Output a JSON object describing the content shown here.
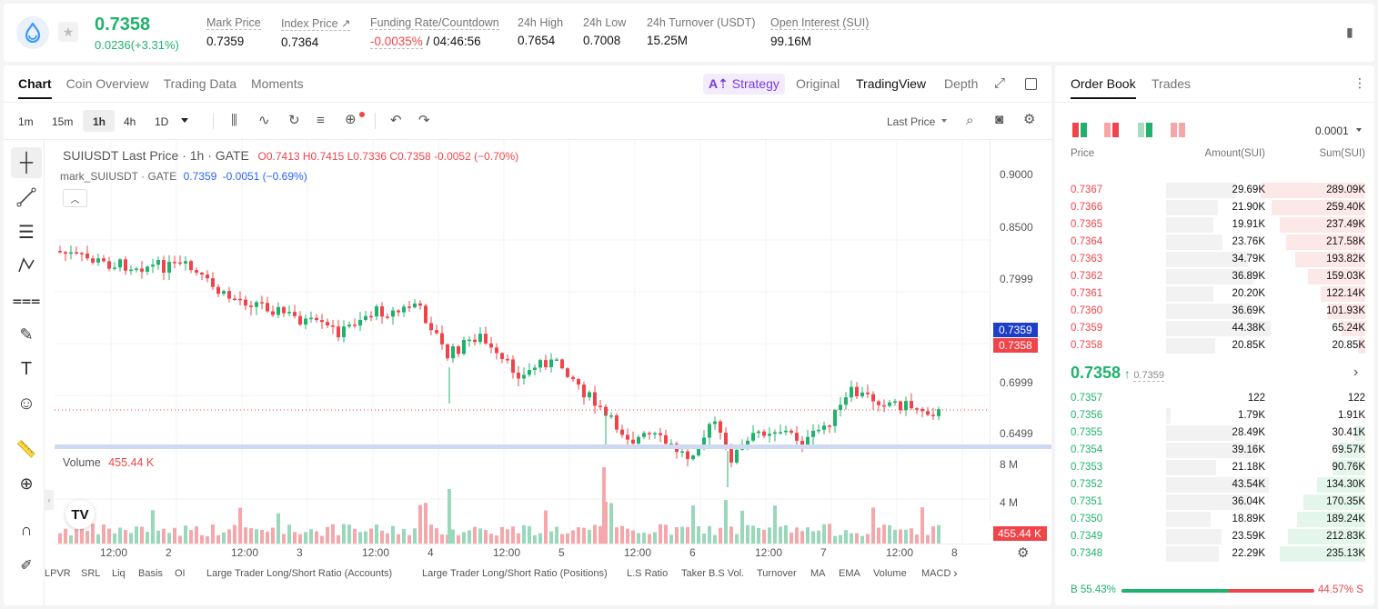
{
  "header": {
    "price": "0.7358",
    "change": "0.0236(+3.31%)",
    "stats": [
      {
        "label": "Mark Price",
        "value": "0.7359"
      },
      {
        "label": "Index Price ↗",
        "value": "0.7364"
      },
      {
        "label": "Funding Rate/Countdown",
        "rate": "-0.0035%",
        "countdown": "/ 04:46:56"
      },
      {
        "label": "24h High",
        "value": "0.7654"
      },
      {
        "label": "24h Low",
        "value": "0.7008"
      },
      {
        "label": "24h Turnover (USDT)",
        "value": "15.25M"
      },
      {
        "label": "Open Interest (SUI)",
        "value": "99.16M"
      }
    ]
  },
  "chart_tabs": [
    "Chart",
    "Coin Overview",
    "Trading Data",
    "Moments"
  ],
  "view_tabs": {
    "strategy": "Strategy",
    "original": "Original",
    "tradingview": "TradingView",
    "depth": "Depth"
  },
  "timeframes": [
    "1m",
    "15m",
    "1h",
    "4h",
    "1D"
  ],
  "price_type": "Last Price",
  "legend": {
    "title": "SUIUSDT Last Price · 1h · GATE",
    "o": "O0.7413",
    "h": "H0.7415",
    "l": "L0.7336",
    "c": "C0.7358",
    "chg": "-0.0052 (−0.70%)",
    "mark": "mark_SUIUSDT · GATE",
    "mark_val": "0.7359",
    "mark_chg": "-0.0051 (−0.69%)"
  },
  "price_axis": [
    "0.9000",
    "0.8500",
    "0.7999",
    "0.6999",
    "0.6499"
  ],
  "mark_tag": "0.7359",
  "last_tag": "0.7358",
  "volume": {
    "label": "Volume",
    "value": "455.44 K",
    "axis": [
      "8 M",
      "4 M"
    ],
    "tag": "455.44 K"
  },
  "time_axis": [
    "12:00",
    "2",
    "12:00",
    "3",
    "12:00",
    "4",
    "12:00",
    "5",
    "12:00",
    "6",
    "12:00",
    "7",
    "12:00",
    "8"
  ],
  "indicators": [
    "LPVR",
    "SRL",
    "Liq",
    "Basis",
    "OI",
    "Large Trader Long/Short Ratio (Accounts)",
    "Large Trader Long/Short Ratio (Positions)",
    "L.S Ratio",
    "Taker B.S Vol.",
    "Turnover",
    "MA",
    "EMA",
    "Volume",
    "MACD"
  ],
  "orderbook": {
    "tabs": [
      "Order Book",
      "Trades"
    ],
    "precision": "0.0001",
    "cols": [
      "Price",
      "Amount(SUI)",
      "Sum(SUI)"
    ],
    "asks": [
      {
        "p": "0.7367",
        "a": "29.69K",
        "s": "289.09K"
      },
      {
        "p": "0.7366",
        "a": "21.90K",
        "s": "259.40K"
      },
      {
        "p": "0.7365",
        "a": "19.91K",
        "s": "237.49K"
      },
      {
        "p": "0.7364",
        "a": "23.76K",
        "s": "217.58K"
      },
      {
        "p": "0.7363",
        "a": "34.79K",
        "s": "193.82K"
      },
      {
        "p": "0.7362",
        "a": "36.89K",
        "s": "159.03K"
      },
      {
        "p": "0.7361",
        "a": "20.20K",
        "s": "122.14K"
      },
      {
        "p": "0.7360",
        "a": "36.69K",
        "s": "101.93K"
      },
      {
        "p": "0.7359",
        "a": "44.38K",
        "s": "65.24K"
      },
      {
        "p": "0.7358",
        "a": "20.85K",
        "s": "20.85K"
      }
    ],
    "mid": "0.7358",
    "mid_mark": "0.7359",
    "bids": [
      {
        "p": "0.7357",
        "a": "122",
        "s": "122"
      },
      {
        "p": "0.7356",
        "a": "1.79K",
        "s": "1.91K"
      },
      {
        "p": "0.7355",
        "a": "28.49K",
        "s": "30.41K"
      },
      {
        "p": "0.7354",
        "a": "39.16K",
        "s": "69.57K"
      },
      {
        "p": "0.7353",
        "a": "21.18K",
        "s": "90.76K"
      },
      {
        "p": "0.7352",
        "a": "43.54K",
        "s": "134.30K"
      },
      {
        "p": "0.7351",
        "a": "36.04K",
        "s": "170.35K"
      },
      {
        "p": "0.7350",
        "a": "18.89K",
        "s": "189.24K"
      },
      {
        "p": "0.7349",
        "a": "23.59K",
        "s": "212.83K"
      },
      {
        "p": "0.7348",
        "a": "22.29K",
        "s": "235.13K"
      }
    ],
    "buy_label": "B 55.43%",
    "sell_label": "44.57% S",
    "buy_pct": 55.43
  },
  "colors": {
    "green": "#20b26c",
    "red": "#ef454a",
    "accent": "#1e3ec8"
  }
}
